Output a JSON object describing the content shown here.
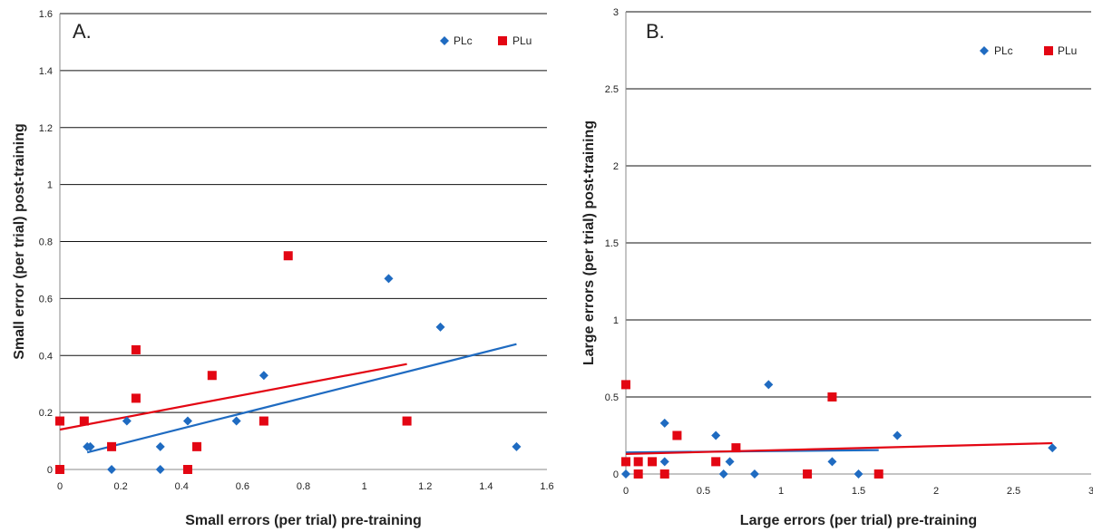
{
  "colors": {
    "plc": "#1f6bc1",
    "plu": "#e30613",
    "grid": "#111111",
    "text": "#222222"
  },
  "chart_data": [
    {
      "type": "scatter",
      "panel_label": "A.",
      "xlabel": "Small errors (per trial) pre-training",
      "ylabel": "Small error (per trial) post-training",
      "xlim": [
        0,
        1.6
      ],
      "ylim": [
        0,
        1.6
      ],
      "xticks": [
        "0",
        "0.2",
        "0.4",
        "0.6",
        "0.8",
        "1",
        "1.2",
        "1.4",
        "1.6"
      ],
      "yticks": [
        "0",
        "0.2",
        "0.4",
        "0.6",
        "0.8",
        "1",
        "1.2",
        "1.4",
        "1.6"
      ],
      "grid": "horizontal",
      "legend_placement": "top-right",
      "series": [
        {
          "name": "PLc",
          "marker": "diamond",
          "color": "#1f6bc1",
          "points": [
            [
              0.09,
              0.08
            ],
            [
              0.1,
              0.08
            ],
            [
              0.17,
              0.0
            ],
            [
              0.22,
              0.17
            ],
            [
              0.33,
              0.08
            ],
            [
              0.33,
              0.0
            ],
            [
              0.42,
              0.17
            ],
            [
              0.58,
              0.17
            ],
            [
              0.67,
              0.33
            ],
            [
              1.08,
              0.67
            ],
            [
              1.25,
              0.5
            ],
            [
              1.5,
              0.08
            ]
          ],
          "trendline": [
            [
              0.09,
              0.06
            ],
            [
              1.5,
              0.44
            ]
          ]
        },
        {
          "name": "PLu",
          "marker": "square",
          "color": "#e30613",
          "points": [
            [
              0.0,
              0.17
            ],
            [
              0.0,
              0.0
            ],
            [
              0.08,
              0.17
            ],
            [
              0.17,
              0.08
            ],
            [
              0.25,
              0.42
            ],
            [
              0.25,
              0.25
            ],
            [
              0.42,
              0.0
            ],
            [
              0.45,
              0.08
            ],
            [
              0.5,
              0.33
            ],
            [
              0.67,
              0.17
            ],
            [
              0.75,
              0.75
            ],
            [
              1.14,
              0.17
            ]
          ],
          "trendline": [
            [
              0.0,
              0.14
            ],
            [
              1.14,
              0.37
            ]
          ]
        }
      ]
    },
    {
      "type": "scatter",
      "panel_label": "B.",
      "xlabel": "Large errors (per trial) pre-training",
      "ylabel": "Large errors (per trial) post-training",
      "xlim": [
        0,
        3
      ],
      "ylim": [
        0,
        3
      ],
      "xticks": [
        "0",
        "0.5",
        "1",
        "1.5",
        "2",
        "2.5",
        "3"
      ],
      "yticks": [
        "0",
        "0.5",
        "1",
        "1.5",
        "2",
        "2.5",
        "3"
      ],
      "grid": "horizontal",
      "legend_placement": "top-right",
      "series": [
        {
          "name": "PLc",
          "marker": "diamond",
          "color": "#1f6bc1",
          "points": [
            [
              0.0,
              0.0
            ],
            [
              0.25,
              0.33
            ],
            [
              0.25,
              0.08
            ],
            [
              0.58,
              0.25
            ],
            [
              0.63,
              0.0
            ],
            [
              0.67,
              0.08
            ],
            [
              0.83,
              0.0
            ],
            [
              0.92,
              0.58
            ],
            [
              1.33,
              0.08
            ],
            [
              1.5,
              0.0
            ],
            [
              1.75,
              0.25
            ],
            [
              2.75,
              0.17
            ]
          ],
          "trendline": [
            [
              0.0,
              0.14
            ],
            [
              1.63,
              0.155
            ]
          ]
        },
        {
          "name": "PLu",
          "marker": "square",
          "color": "#e30613",
          "points": [
            [
              0.0,
              0.58
            ],
            [
              0.0,
              0.08
            ],
            [
              0.08,
              0.08
            ],
            [
              0.08,
              0.0
            ],
            [
              0.17,
              0.08
            ],
            [
              0.25,
              0.0
            ],
            [
              0.33,
              0.25
            ],
            [
              0.58,
              0.08
            ],
            [
              0.71,
              0.17
            ],
            [
              1.17,
              0.0
            ],
            [
              1.33,
              0.5
            ],
            [
              1.63,
              0.0
            ]
          ],
          "trendline": [
            [
              0.0,
              0.13
            ],
            [
              2.75,
              0.2
            ]
          ]
        }
      ]
    }
  ]
}
